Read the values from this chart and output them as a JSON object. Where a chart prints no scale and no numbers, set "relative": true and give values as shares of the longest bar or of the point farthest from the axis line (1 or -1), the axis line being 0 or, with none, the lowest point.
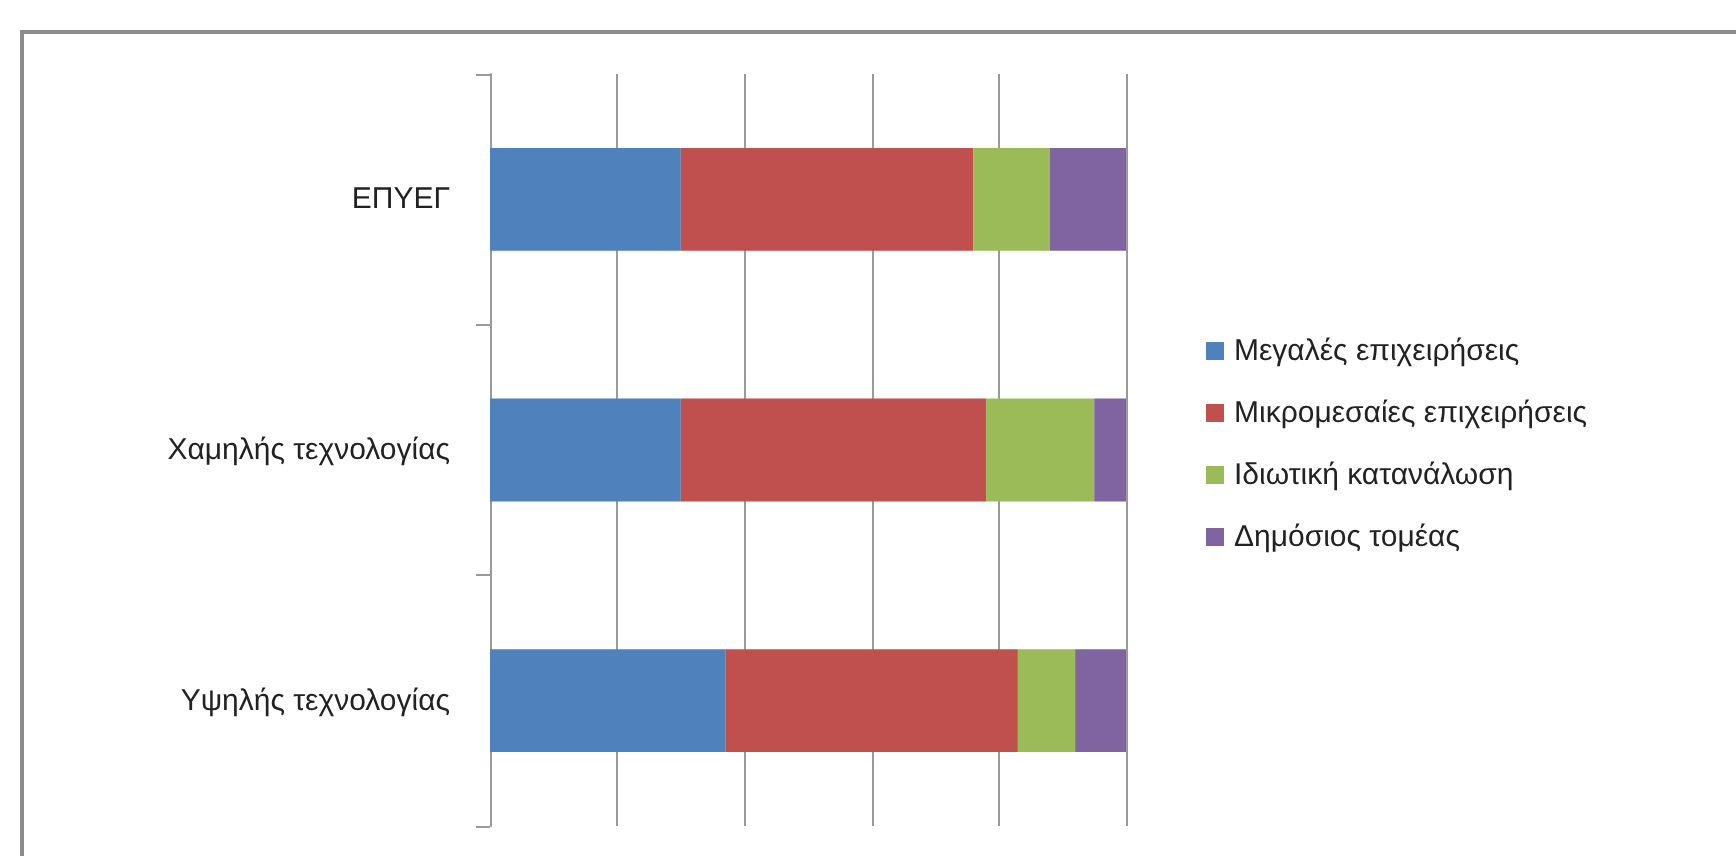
{
  "chart_data": {
    "type": "bar",
    "orientation": "horizontal",
    "stacked": true,
    "relative": true,
    "categories": [
      "ΕΠΥΕΓ",
      "Χαμηλής τεχνολογίας",
      "Υψηλής τεχνολογίας"
    ],
    "series": [
      {
        "name": "Μεγαλές επιχειρήσεις",
        "color": "#4f81bd",
        "values": [
          0.3,
          0.3,
          0.37
        ]
      },
      {
        "name": "Μικρομεσαίες επιχειρήσεις",
        "color": "#c0504d",
        "values": [
          0.46,
          0.48,
          0.46
        ]
      },
      {
        "name": "Ιδιωτική κατανάλωση",
        "color": "#9bbb59",
        "values": [
          0.12,
          0.17,
          0.09
        ]
      },
      {
        "name": "Δημόσιος τομέας",
        "color": "#8064a2",
        "values": [
          0.12,
          0.05,
          0.08
        ]
      }
    ],
    "grid": "x",
    "legend": "right"
  }
}
